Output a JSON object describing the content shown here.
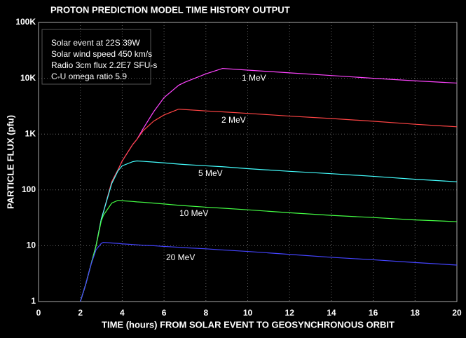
{
  "chart_data": {
    "type": "line",
    "title": "PROTON PREDICTION MODEL TIME HISTORY OUTPUT",
    "x_label": "TIME (hours) FROM SOLAR EVENT TO GEOSYNCHRONOUS ORBIT",
    "y_label": "PARTICLE FLUX  (pfu)",
    "annotations": [
      "Solar event at 22S 39W",
      "Solar wind speed 450 km/s",
      "Radio 3cm flux  2.2E7 SFU-s",
      "C-U omega ratio 5.9"
    ],
    "log_y": true,
    "grid": true,
    "xlim": [
      0,
      20
    ],
    "xticks": [
      0,
      2,
      4,
      6,
      8,
      10,
      12,
      14,
      16,
      18,
      20
    ],
    "ylim": [
      1,
      100000
    ],
    "yticks": [
      1,
      10,
      100,
      {
        "value": 1000,
        "label": "1K"
      },
      {
        "value": 10000,
        "label": "10K"
      },
      {
        "value": 100000,
        "label": "100K"
      }
    ],
    "x": [
      2,
      2.25,
      2.5,
      2.75,
      3,
      3.1,
      3.5,
      3.8,
      4,
      4.5,
      4.7,
      5,
      5.5,
      6,
      6.7,
      7,
      8,
      8.8,
      10,
      12,
      14,
      16,
      18,
      20
    ],
    "series": [
      {
        "name": "1 MeV",
        "color": "#ff44ff",
        "values": [
          1,
          2,
          4.5,
          10,
          30,
          40,
          140,
          230,
          330,
          650,
          800,
          1250,
          2500,
          4500,
          7500,
          8500,
          12000,
          15000,
          14000,
          12500,
          11200,
          10000,
          9000,
          8200
        ]
      },
      {
        "name": "2 MeV",
        "color": "#ff4444",
        "values": [
          1,
          2,
          4.5,
          10,
          30,
          40,
          140,
          230,
          330,
          650,
          800,
          1150,
          1700,
          2200,
          2800,
          2750,
          2600,
          2500,
          2350,
          2100,
          1900,
          1700,
          1500,
          1350
        ]
      },
      {
        "name": "5 MeV",
        "color": "#44ffff",
        "values": [
          1,
          2,
          4.5,
          10,
          30,
          40,
          130,
          220,
          270,
          320,
          330,
          325,
          315,
          305,
          290,
          285,
          270,
          260,
          240,
          215,
          195,
          175,
          155,
          140
        ]
      },
      {
        "name": "10 MeV",
        "color": "#44ff44",
        "values": [
          1,
          2,
          4.5,
          10,
          28,
          35,
          58,
          65,
          64,
          62,
          61,
          60,
          58,
          56,
          53,
          52,
          49,
          47,
          44,
          39,
          35,
          32,
          29,
          27
        ]
      },
      {
        "name": "20 MeV",
        "color": "#4444ff",
        "values": [
          1,
          2,
          4.5,
          8.5,
          11,
          11.5,
          11.2,
          11,
          10.8,
          10.5,
          10.4,
          10.2,
          10,
          9.7,
          9.4,
          9.2,
          8.8,
          8.4,
          7.9,
          7,
          6.2,
          5.6,
          5,
          4.5
        ]
      }
    ]
  }
}
